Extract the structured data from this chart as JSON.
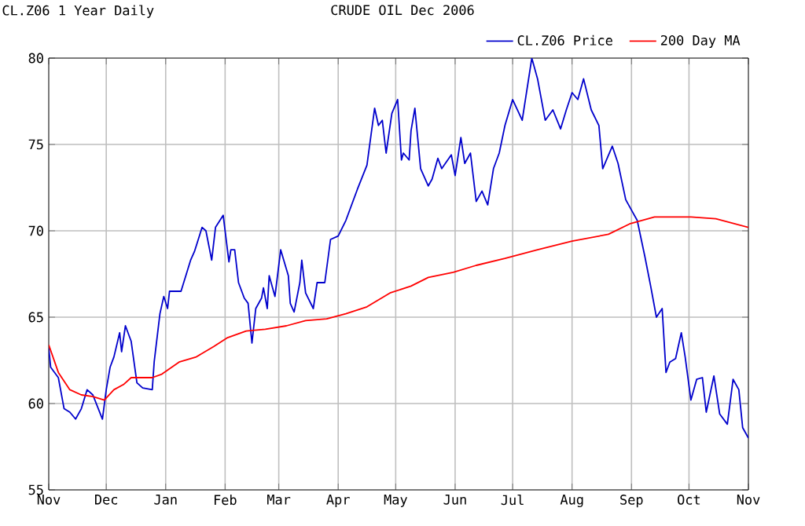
{
  "chart_data": {
    "type": "line",
    "title": "CRUDE OIL Dec 2006",
    "subtitle": "CL.Z06 1 Year Daily",
    "xlim": [
      "2005-11-01",
      "2006-11-01"
    ],
    "xticks": [
      {
        "value": "2005-11-01",
        "label": "Nov"
      },
      {
        "value": "2005-12-01",
        "label": "Dec"
      },
      {
        "value": "2006-01-01",
        "label": "Jan"
      },
      {
        "value": "2006-02-01",
        "label": "Feb"
      },
      {
        "value": "2006-03-01",
        "label": "Mar"
      },
      {
        "value": "2006-04-01",
        "label": "Apr"
      },
      {
        "value": "2006-05-01",
        "label": "May"
      },
      {
        "value": "2006-06-01",
        "label": "Jun"
      },
      {
        "value": "2006-07-01",
        "label": "Jul"
      },
      {
        "value": "2006-08-01",
        "label": "Aug"
      },
      {
        "value": "2006-09-01",
        "label": "Sep"
      },
      {
        "value": "2006-10-01",
        "label": "Oct"
      },
      {
        "value": "2006-11-01",
        "label": "Nov"
      }
    ],
    "ylim": [
      55,
      80
    ],
    "yticks": [
      55,
      60,
      65,
      70,
      75,
      80
    ],
    "grid": true,
    "legend": "top right",
    "series": [
      {
        "name": "CL.Z06 Price",
        "color": "#0000cc",
        "x": [
          "2005-11-01",
          "2005-11-02",
          "2005-11-06",
          "2005-11-09",
          "2005-11-12",
          "2005-11-15",
          "2005-11-18",
          "2005-11-21",
          "2005-11-24",
          "2005-11-29",
          "2005-12-01",
          "2005-12-03",
          "2005-12-05",
          "2005-12-08",
          "2005-12-09",
          "2005-12-11",
          "2005-12-14",
          "2005-12-17",
          "2005-12-20",
          "2005-12-25",
          "2005-12-26",
          "2005-12-29",
          "2005-12-31",
          "2006-01-02",
          "2006-01-03",
          "2006-01-09",
          "2006-01-14",
          "2006-01-16",
          "2006-01-20",
          "2006-01-22",
          "2006-01-25",
          "2006-01-27",
          "2006-01-31",
          "2006-02-03",
          "2006-02-04",
          "2006-02-06",
          "2006-02-08",
          "2006-02-11",
          "2006-02-13",
          "2006-02-15",
          "2006-02-17",
          "2006-02-20",
          "2006-02-21",
          "2006-02-23",
          "2006-02-24",
          "2006-02-27",
          "2006-03-02",
          "2006-03-06",
          "2006-03-07",
          "2006-03-09",
          "2006-03-12",
          "2006-03-13",
          "2006-03-15",
          "2006-03-19",
          "2006-03-21",
          "2006-03-25",
          "2006-03-28",
          "2006-04-01",
          "2006-04-05",
          "2006-04-11",
          "2006-04-16",
          "2006-04-20",
          "2006-04-22",
          "2006-04-24",
          "2006-04-26",
          "2006-04-29",
          "2006-05-02",
          "2006-05-04",
          "2006-05-05",
          "2006-05-08",
          "2006-05-09",
          "2006-05-11",
          "2006-05-14",
          "2006-05-18",
          "2006-05-20",
          "2006-05-23",
          "2006-05-25",
          "2006-05-30",
          "2006-06-01",
          "2006-06-04",
          "2006-06-06",
          "2006-06-09",
          "2006-06-12",
          "2006-06-15",
          "2006-06-18",
          "2006-06-21",
          "2006-06-24",
          "2006-06-27",
          "2006-07-01",
          "2006-07-06",
          "2006-07-11",
          "2006-07-14",
          "2006-07-18",
          "2006-07-22",
          "2006-07-26",
          "2006-07-29",
          "2006-08-01",
          "2006-08-04",
          "2006-08-07",
          "2006-08-11",
          "2006-08-15",
          "2006-08-17",
          "2006-08-22",
          "2006-08-25",
          "2006-08-29",
          "2006-09-01",
          "2006-09-04",
          "2006-09-08",
          "2006-09-11",
          "2006-09-14",
          "2006-09-17",
          "2006-09-19",
          "2006-09-21",
          "2006-09-24",
          "2006-09-27",
          "2006-09-29",
          "2006-10-02",
          "2006-10-05",
          "2006-10-08",
          "2006-10-10",
          "2006-10-14",
          "2006-10-17",
          "2006-10-21",
          "2006-10-24",
          "2006-10-27",
          "2006-10-29",
          "2006-11-01"
        ],
        "values": [
          63.2,
          62.1,
          61.5,
          59.7,
          59.5,
          59.1,
          59.7,
          60.8,
          60.5,
          59.1,
          60.8,
          62.1,
          62.7,
          64.1,
          63.0,
          64.5,
          63.6,
          61.2,
          60.9,
          60.8,
          62.4,
          65.2,
          66.2,
          65.5,
          66.5,
          66.5,
          68.3,
          68.8,
          70.2,
          70.0,
          68.3,
          70.2,
          70.9,
          68.2,
          68.9,
          68.9,
          67.0,
          66.1,
          65.8,
          63.5,
          65.5,
          66.1,
          66.7,
          65.5,
          67.4,
          66.2,
          68.9,
          67.4,
          65.8,
          65.3,
          67.0,
          68.3,
          66.4,
          65.5,
          67.0,
          67.0,
          69.5,
          69.7,
          70.6,
          72.4,
          73.8,
          77.1,
          76.1,
          76.4,
          74.5,
          76.8,
          77.6,
          74.1,
          74.5,
          74.1,
          75.8,
          77.1,
          73.6,
          72.6,
          73.0,
          74.2,
          73.6,
          74.4,
          73.2,
          75.4,
          73.9,
          74.5,
          71.7,
          72.3,
          71.5,
          73.6,
          74.5,
          76.1,
          77.6,
          76.4,
          80.0,
          78.8,
          76.4,
          77.0,
          75.9,
          77.0,
          78.0,
          77.6,
          78.8,
          77.0,
          76.1,
          73.6,
          74.9,
          73.9,
          71.8,
          71.2,
          70.6,
          68.5,
          66.8,
          65.0,
          65.5,
          61.8,
          62.4,
          62.6,
          64.1,
          62.7,
          60.2,
          61.4,
          61.5,
          59.5,
          61.6,
          59.4,
          58.8,
          61.4,
          60.8,
          58.6,
          58.0
        ]
      },
      {
        "name": "200 Day MA",
        "color": "#ff0000",
        "x": [
          "2005-11-01",
          "2005-11-06",
          "2005-11-12",
          "2005-11-18",
          "2005-11-24",
          "2005-11-30",
          "2005-12-05",
          "2005-12-10",
          "2005-12-14",
          "2005-12-25",
          "2005-12-30",
          "2006-01-08",
          "2006-01-17",
          "2006-01-26",
          "2006-02-02",
          "2006-02-12",
          "2006-02-22",
          "2006-03-05",
          "2006-03-15",
          "2006-03-26",
          "2006-04-05",
          "2006-04-16",
          "2006-04-28",
          "2006-05-09",
          "2006-05-18",
          "2006-05-31",
          "2006-06-12",
          "2006-06-27",
          "2006-07-14",
          "2006-08-01",
          "2006-08-20",
          "2006-08-31",
          "2006-09-13",
          "2006-10-02",
          "2006-10-15",
          "2006-11-01"
        ],
        "values": [
          63.4,
          61.8,
          60.8,
          60.5,
          60.4,
          60.2,
          60.8,
          61.1,
          61.5,
          61.5,
          61.7,
          62.4,
          62.7,
          63.3,
          63.8,
          64.2,
          64.3,
          64.5,
          64.8,
          64.9,
          65.2,
          65.6,
          66.4,
          66.8,
          67.3,
          67.6,
          68.0,
          68.4,
          68.9,
          69.4,
          69.8,
          70.4,
          70.8,
          70.8,
          70.7,
          70.2
        ]
      }
    ]
  }
}
